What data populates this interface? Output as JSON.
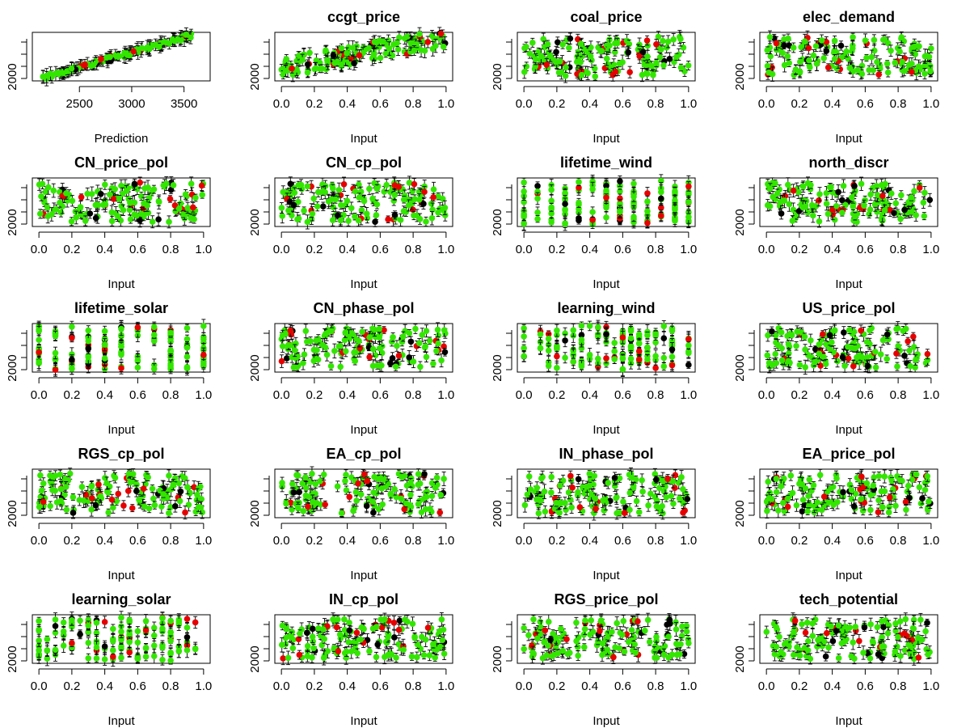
{
  "chart_data": [
    {
      "type": "scatter",
      "title": "",
      "xlabel": "Prediction",
      "x_ticks": [
        "2500",
        "3000",
        "3500"
      ],
      "y_ticks": [
        "2000"
      ],
      "xlim": [
        2050,
        3750
      ],
      "ylim": [
        1900,
        4100
      ],
      "pattern": "diag",
      "seed": 1
    },
    {
      "type": "scatter",
      "title": "ccgt_price",
      "xlabel": "Input",
      "x_ticks": [
        "0.0",
        "0.2",
        "0.4",
        "0.6",
        "0.8",
        "1.0"
      ],
      "y_ticks": [
        "2000"
      ],
      "xlim": [
        -0.04,
        1.04
      ],
      "ylim": [
        1900,
        4100
      ],
      "pattern": "trend",
      "seed": 2
    },
    {
      "type": "scatter",
      "title": "coal_price",
      "xlabel": "Input",
      "x_ticks": [
        "0.0",
        "0.2",
        "0.4",
        "0.6",
        "0.8",
        "1.0"
      ],
      "y_ticks": [
        "2000"
      ],
      "xlim": [
        -0.04,
        1.04
      ],
      "ylim": [
        1900,
        4100
      ],
      "pattern": "flat",
      "seed": 3
    },
    {
      "type": "scatter",
      "title": "elec_demand",
      "xlabel": "Input",
      "x_ticks": [
        "0.0",
        "0.2",
        "0.4",
        "0.6",
        "0.8",
        "1.0"
      ],
      "y_ticks": [
        "2000"
      ],
      "xlim": [
        -0.04,
        1.04
      ],
      "ylim": [
        1900,
        4100
      ],
      "pattern": "flat",
      "seed": 4
    },
    {
      "type": "scatter",
      "title": "CN_price_pol",
      "xlabel": "Input",
      "x_ticks": [
        "0.0",
        "0.2",
        "0.4",
        "0.6",
        "0.8",
        "1.0"
      ],
      "y_ticks": [
        "2000"
      ],
      "xlim": [
        -0.04,
        1.04
      ],
      "ylim": [
        1900,
        4100
      ],
      "pattern": "flat",
      "seed": 5
    },
    {
      "type": "scatter",
      "title": "CN_cp_pol",
      "xlabel": "Input",
      "x_ticks": [
        "0.0",
        "0.2",
        "0.4",
        "0.6",
        "0.8",
        "1.0"
      ],
      "y_ticks": [
        "2000"
      ],
      "xlim": [
        -0.04,
        1.04
      ],
      "ylim": [
        1900,
        4100
      ],
      "pattern": "flat",
      "seed": 6
    },
    {
      "type": "scatter",
      "title": "lifetime_wind",
      "xlabel": "Input",
      "x_ticks": [
        "0.0",
        "0.2",
        "0.4",
        "0.6",
        "0.8",
        "1.0"
      ],
      "y_ticks": [
        "2000"
      ],
      "xlim": [
        -0.04,
        1.04
      ],
      "ylim": [
        1900,
        4100
      ],
      "pattern": "discrete",
      "levels": [
        0.0,
        0.083,
        0.167,
        0.25,
        0.333,
        0.417,
        0.5,
        0.583,
        0.667,
        0.75,
        0.833,
        0.917,
        1.0
      ],
      "seed": 7
    },
    {
      "type": "scatter",
      "title": "north_discr",
      "xlabel": "Input",
      "x_ticks": [
        "0.0",
        "0.2",
        "0.4",
        "0.6",
        "0.8",
        "1.0"
      ],
      "y_ticks": [
        "2000"
      ],
      "xlim": [
        -0.04,
        1.04
      ],
      "ylim": [
        1900,
        4100
      ],
      "pattern": "flat",
      "seed": 8
    },
    {
      "type": "scatter",
      "title": "lifetime_solar",
      "xlabel": "Input",
      "x_ticks": [
        "0.0",
        "0.2",
        "0.4",
        "0.6",
        "0.8",
        "1.0"
      ],
      "y_ticks": [
        "2000"
      ],
      "xlim": [
        -0.04,
        1.04
      ],
      "ylim": [
        1900,
        4100
      ],
      "pattern": "discrete",
      "levels": [
        0.0,
        0.1,
        0.2,
        0.3,
        0.4,
        0.5,
        0.6,
        0.7,
        0.8,
        0.9,
        1.0
      ],
      "seed": 9
    },
    {
      "type": "scatter",
      "title": "CN_phase_pol",
      "xlabel": "Input",
      "x_ticks": [
        "0.0",
        "0.2",
        "0.4",
        "0.6",
        "0.8",
        "1.0"
      ],
      "y_ticks": [
        "2000"
      ],
      "xlim": [
        -0.04,
        1.04
      ],
      "ylim": [
        1900,
        4100
      ],
      "pattern": "flat",
      "seed": 10
    },
    {
      "type": "scatter",
      "title": "learning_wind",
      "xlabel": "Input",
      "x_ticks": [
        "0.0",
        "0.2",
        "0.4",
        "0.6",
        "0.8",
        "1.0"
      ],
      "y_ticks": [
        "2000"
      ],
      "xlim": [
        -0.04,
        1.04
      ],
      "ylim": [
        1900,
        4100
      ],
      "pattern": "discrete",
      "levels": [
        0.0,
        0.1,
        0.15,
        0.2,
        0.25,
        0.3,
        0.35,
        0.4,
        0.45,
        0.5,
        0.55,
        0.6,
        0.65,
        0.7,
        0.75,
        0.8,
        0.85,
        0.9,
        1.0
      ],
      "seed": 11
    },
    {
      "type": "scatter",
      "title": "US_price_pol",
      "xlabel": "Input",
      "x_ticks": [
        "0.0",
        "0.2",
        "0.4",
        "0.6",
        "0.8",
        "1.0"
      ],
      "y_ticks": [
        "2000"
      ],
      "xlim": [
        -0.04,
        1.04
      ],
      "ylim": [
        1900,
        4100
      ],
      "pattern": "flat",
      "seed": 12
    },
    {
      "type": "scatter",
      "title": "RGS_cp_pol",
      "xlabel": "Input",
      "x_ticks": [
        "0.0",
        "0.2",
        "0.4",
        "0.6",
        "0.8",
        "1.0"
      ],
      "y_ticks": [
        "2000"
      ],
      "xlim": [
        -0.04,
        1.04
      ],
      "ylim": [
        1900,
        4100
      ],
      "pattern": "flat",
      "seed": 13
    },
    {
      "type": "scatter",
      "title": "EA_cp_pol",
      "xlabel": "Input",
      "x_ticks": [
        "0.0",
        "0.2",
        "0.4",
        "0.6",
        "0.8",
        "1.0"
      ],
      "y_ticks": [
        "2000"
      ],
      "xlim": [
        -0.04,
        1.04
      ],
      "ylim": [
        1900,
        4100
      ],
      "pattern": "flat",
      "seed": 14
    },
    {
      "type": "scatter",
      "title": "IN_phase_pol",
      "xlabel": "Input",
      "x_ticks": [
        "0.0",
        "0.2",
        "0.4",
        "0.6",
        "0.8",
        "1.0"
      ],
      "y_ticks": [
        "2000"
      ],
      "xlim": [
        -0.04,
        1.04
      ],
      "ylim": [
        1900,
        4100
      ],
      "pattern": "flat",
      "seed": 15
    },
    {
      "type": "scatter",
      "title": "EA_price_pol",
      "xlabel": "Input",
      "x_ticks": [
        "0.0",
        "0.2",
        "0.4",
        "0.6",
        "0.8",
        "1.0"
      ],
      "y_ticks": [
        "2000"
      ],
      "xlim": [
        -0.04,
        1.04
      ],
      "ylim": [
        1900,
        4100
      ],
      "pattern": "flat",
      "seed": 16
    },
    {
      "type": "scatter",
      "title": "learning_solar",
      "xlabel": "Input",
      "x_ticks": [
        "0.0",
        "0.2",
        "0.4",
        "0.6",
        "0.8",
        "1.0"
      ],
      "y_ticks": [
        "2000"
      ],
      "xlim": [
        -0.04,
        1.04
      ],
      "ylim": [
        1900,
        4100
      ],
      "pattern": "discrete",
      "levels": [
        0.0,
        0.05,
        0.1,
        0.15,
        0.2,
        0.25,
        0.3,
        0.35,
        0.4,
        0.45,
        0.5,
        0.55,
        0.6,
        0.65,
        0.7,
        0.75,
        0.8,
        0.85,
        0.9,
        0.95
      ],
      "seed": 17
    },
    {
      "type": "scatter",
      "title": "IN_cp_pol",
      "xlabel": "Input",
      "x_ticks": [
        "0.0",
        "0.2",
        "0.4",
        "0.6",
        "0.8",
        "1.0"
      ],
      "y_ticks": [
        "2000"
      ],
      "xlim": [
        -0.04,
        1.04
      ],
      "ylim": [
        1900,
        4100
      ],
      "pattern": "flat",
      "seed": 18
    },
    {
      "type": "scatter",
      "title": "RGS_price_pol",
      "xlabel": "Input",
      "x_ticks": [
        "0.0",
        "0.2",
        "0.4",
        "0.6",
        "0.8",
        "1.0"
      ],
      "y_ticks": [
        "2000"
      ],
      "xlim": [
        -0.04,
        1.04
      ],
      "ylim": [
        1900,
        4100
      ],
      "pattern": "flat",
      "seed": 19
    },
    {
      "type": "scatter",
      "title": "tech_potential",
      "xlabel": "Input",
      "x_ticks": [
        "0.0",
        "0.2",
        "0.4",
        "0.6",
        "0.8",
        "1.0"
      ],
      "y_ticks": [
        "2000"
      ],
      "xlim": [
        -0.04,
        1.04
      ],
      "ylim": [
        1900,
        4100
      ],
      "pattern": "flat",
      "seed": 20
    }
  ],
  "colors": {
    "main_points": "#33e600",
    "held_out_points": "#e60000",
    "bar_points": "#000000",
    "axes": "#000000"
  },
  "grid": false,
  "legend": "none"
}
